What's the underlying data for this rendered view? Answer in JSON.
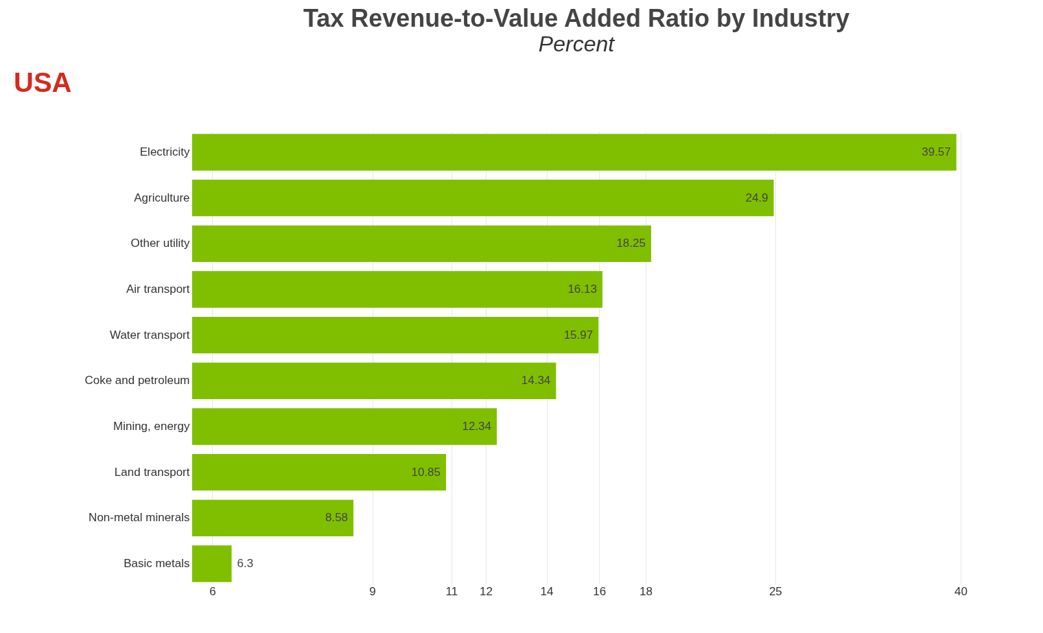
{
  "chart_data": {
    "type": "bar",
    "orientation": "horizontal",
    "title": "Tax Revenue-to-Value Added Ratio by Industry",
    "subtitle": "Percent",
    "annotations": [
      "USA"
    ],
    "categories": [
      "Electricity",
      "Agriculture",
      "Other utility",
      "Air transport",
      "Water transport",
      "Coke and petroleum",
      "Mining, energy",
      "Land transport",
      "Non-metal minerals",
      "Basic metals"
    ],
    "values": [
      39.57,
      24.9,
      18.25,
      16.13,
      15.97,
      14.34,
      12.34,
      10.85,
      8.58,
      6.3
    ],
    "color": "#80bf00",
    "log": "x",
    "xlim": [
      5.7,
      40
    ],
    "xticks": [
      6,
      9,
      11,
      12,
      14,
      16,
      18,
      25,
      40
    ],
    "grid": "x",
    "data_labels": true
  }
}
